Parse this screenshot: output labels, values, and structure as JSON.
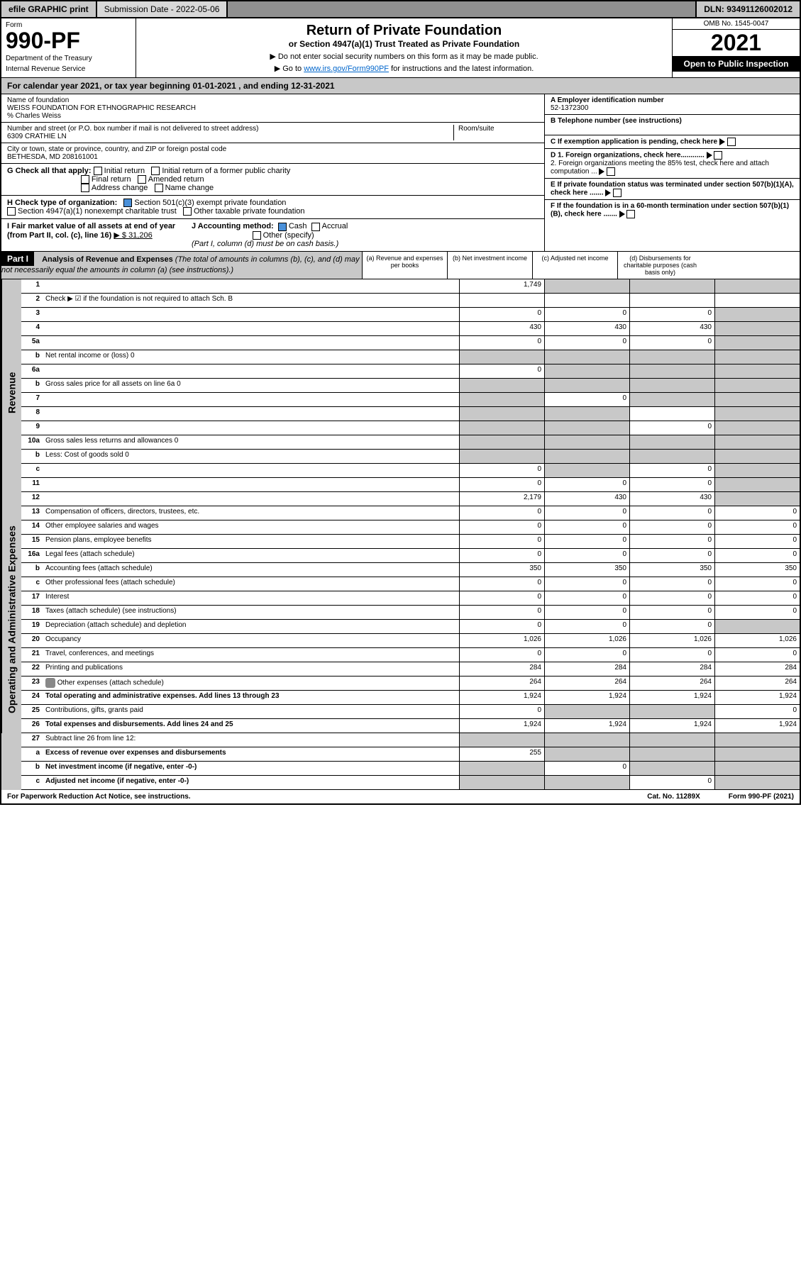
{
  "topbar": {
    "efile": "efile GRAPHIC print",
    "submission_label": "Submission Date - 2022-05-06",
    "dln": "DLN: 93491126002012"
  },
  "header": {
    "form_label": "Form",
    "form_number": "990-PF",
    "dept1": "Department of the Treasury",
    "dept2": "Internal Revenue Service",
    "title": "Return of Private Foundation",
    "subtitle": "or Section 4947(a)(1) Trust Treated as Private Foundation",
    "note1": "▶ Do not enter social security numbers on this form as it may be made public.",
    "note2_pre": "▶ Go to ",
    "note2_link": "www.irs.gov/Form990PF",
    "note2_post": " for instructions and the latest information.",
    "omb": "OMB No. 1545-0047",
    "year": "2021",
    "open_public": "Open to Public Inspection"
  },
  "calyear": "For calendar year 2021, or tax year beginning 01-01-2021                          , and ending 12-31-2021",
  "info": {
    "name_label": "Name of foundation",
    "name": "WEISS FOUNDATION FOR ETHNOGRAPHIC RESEARCH",
    "care_of": "% Charles Weiss",
    "addr_label": "Number and street (or P.O. box number if mail is not delivered to street address)",
    "addr": "6309 CRATHIE LN",
    "room_label": "Room/suite",
    "city_label": "City or town, state or province, country, and ZIP or foreign postal code",
    "city": "BETHESDA, MD  208161001",
    "ein_label": "A Employer identification number",
    "ein": "52-1372300",
    "phone_label": "B Telephone number (see instructions)",
    "c_label": "C If exemption application is pending, check here",
    "d1_label": "D 1. Foreign organizations, check here............",
    "d2_label": "2. Foreign organizations meeting the 85% test, check here and attach computation ...",
    "e_label": "E  If private foundation status was terminated under section 507(b)(1)(A), check here .......",
    "f_label": "F  If the foundation is in a 60-month termination under section 507(b)(1)(B), check here .......",
    "g_label": "G Check all that apply:",
    "g_opts": [
      "Initial return",
      "Initial return of a former public charity",
      "Final return",
      "Amended return",
      "Address change",
      "Name change"
    ],
    "h_label": "H Check type of organization:",
    "h_501c3": "Section 501(c)(3) exempt private foundation",
    "h_4947": "Section 4947(a)(1) nonexempt charitable trust",
    "h_other": "Other taxable private foundation",
    "i_label": "I Fair market value of all assets at end of year (from Part II, col. (c), line 16)",
    "i_value": "▶ $  31,206",
    "j_label": "J Accounting method:",
    "j_cash": "Cash",
    "j_accrual": "Accrual",
    "j_other": "Other (specify)",
    "j_note": "(Part I, column (d) must be on cash basis.)"
  },
  "part1": {
    "label": "Part I",
    "title": "Analysis of Revenue and Expenses",
    "title_note": " (The total of amounts in columns (b), (c), and (d) may not necessarily equal the amounts in column (a) (see instructions).)",
    "col_a": "(a)   Revenue and expenses per books",
    "col_b": "(b)   Net investment income",
    "col_c": "(c)  Adjusted net income",
    "col_d": "(d)   Disbursements for charitable purposes (cash basis only)"
  },
  "sections": {
    "revenue": "Revenue",
    "expenses": "Operating and Administrative Expenses"
  },
  "rows": [
    {
      "n": "1",
      "d": "",
      "a": "1,749",
      "b": "",
      "c": "",
      "grey": [
        "b",
        "c",
        "d"
      ]
    },
    {
      "n": "2",
      "d": "Check ▶ ☑ if the foundation is not required to attach Sch. B",
      "nocells": true
    },
    {
      "n": "3",
      "d": "",
      "a": "0",
      "b": "0",
      "c": "0",
      "grey": [
        "d"
      ]
    },
    {
      "n": "4",
      "d": "",
      "a": "430",
      "b": "430",
      "c": "430",
      "grey": [
        "d"
      ]
    },
    {
      "n": "5a",
      "d": "",
      "a": "0",
      "b": "0",
      "c": "0",
      "grey": [
        "d"
      ]
    },
    {
      "n": "b",
      "d": "Net rental income or (loss)                              0",
      "nocells": true,
      "grey_all": true
    },
    {
      "n": "6a",
      "d": "",
      "a": "0",
      "b": "",
      "c": "",
      "grey": [
        "b",
        "c",
        "d"
      ]
    },
    {
      "n": "b",
      "d": "Gross sales price for all assets on line 6a                0",
      "nocells": true,
      "grey_all": true
    },
    {
      "n": "7",
      "d": "",
      "a": "",
      "b": "0",
      "c": "",
      "grey": [
        "a",
        "c",
        "d"
      ]
    },
    {
      "n": "8",
      "d": "",
      "a": "",
      "b": "",
      "c": "",
      "grey": [
        "a",
        "b",
        "d"
      ]
    },
    {
      "n": "9",
      "d": "",
      "a": "",
      "b": "",
      "c": "0",
      "grey": [
        "a",
        "b",
        "d"
      ]
    },
    {
      "n": "10a",
      "d": "Gross sales less returns and allowances            0",
      "nocells": true,
      "grey_all": true
    },
    {
      "n": "b",
      "d": "Less: Cost of goods sold                                  0",
      "nocells": true,
      "grey_all": true
    },
    {
      "n": "c",
      "d": "",
      "a": "0",
      "b": "",
      "c": "0",
      "grey": [
        "b",
        "d"
      ]
    },
    {
      "n": "11",
      "d": "",
      "a": "0",
      "b": "0",
      "c": "0",
      "grey": [
        "d"
      ]
    },
    {
      "n": "12",
      "d": "",
      "a": "2,179",
      "b": "430",
      "c": "430",
      "grey": [
        "d"
      ],
      "bold": true
    }
  ],
  "exp_rows": [
    {
      "n": "13",
      "d": "Compensation of officers, directors, trustees, etc.",
      "a": "0",
      "b": "0",
      "c": "0",
      "dd": "0"
    },
    {
      "n": "14",
      "d": "Other employee salaries and wages",
      "a": "0",
      "b": "0",
      "c": "0",
      "dd": "0"
    },
    {
      "n": "15",
      "d": "Pension plans, employee benefits",
      "a": "0",
      "b": "0",
      "c": "0",
      "dd": "0"
    },
    {
      "n": "16a",
      "d": "Legal fees (attach schedule)",
      "a": "0",
      "b": "0",
      "c": "0",
      "dd": "0"
    },
    {
      "n": "b",
      "d": "Accounting fees (attach schedule)",
      "a": "350",
      "b": "350",
      "c": "350",
      "dd": "350"
    },
    {
      "n": "c",
      "d": "Other professional fees (attach schedule)",
      "a": "0",
      "b": "0",
      "c": "0",
      "dd": "0"
    },
    {
      "n": "17",
      "d": "Interest",
      "a": "0",
      "b": "0",
      "c": "0",
      "dd": "0"
    },
    {
      "n": "18",
      "d": "Taxes (attach schedule) (see instructions)",
      "a": "0",
      "b": "0",
      "c": "0",
      "dd": "0"
    },
    {
      "n": "19",
      "d": "Depreciation (attach schedule) and depletion",
      "a": "0",
      "b": "0",
      "c": "0",
      "dd": "",
      "grey": [
        "d"
      ]
    },
    {
      "n": "20",
      "d": "Occupancy",
      "a": "1,026",
      "b": "1,026",
      "c": "1,026",
      "dd": "1,026"
    },
    {
      "n": "21",
      "d": "Travel, conferences, and meetings",
      "a": "0",
      "b": "0",
      "c": "0",
      "dd": "0"
    },
    {
      "n": "22",
      "d": "Printing and publications",
      "a": "284",
      "b": "284",
      "c": "284",
      "dd": "284"
    },
    {
      "n": "23",
      "d": "Other expenses (attach schedule)",
      "a": "264",
      "b": "264",
      "c": "264",
      "dd": "264",
      "icon": true
    },
    {
      "n": "24",
      "d": "Total operating and administrative expenses. Add lines 13 through 23",
      "a": "1,924",
      "b": "1,924",
      "c": "1,924",
      "dd": "1,924",
      "bold": true
    },
    {
      "n": "25",
      "d": "Contributions, gifts, grants paid",
      "a": "0",
      "b": "",
      "c": "",
      "dd": "0",
      "grey": [
        "b",
        "c"
      ]
    },
    {
      "n": "26",
      "d": "Total expenses and disbursements. Add lines 24 and 25",
      "a": "1,924",
      "b": "1,924",
      "c": "1,924",
      "dd": "1,924",
      "bold": true
    }
  ],
  "bottom_rows": [
    {
      "n": "27",
      "d": "Subtract line 26 from line 12:",
      "nocells": true,
      "grey_all": true
    },
    {
      "n": "a",
      "d": "Excess of revenue over expenses and disbursements",
      "a": "255",
      "b": "",
      "c": "",
      "dd": "",
      "grey": [
        "b",
        "c",
        "d"
      ],
      "bold": true
    },
    {
      "n": "b",
      "d": "Net investment income (if negative, enter -0-)",
      "a": "",
      "b": "0",
      "c": "",
      "dd": "",
      "grey": [
        "a",
        "c",
        "d"
      ],
      "bold": true
    },
    {
      "n": "c",
      "d": "Adjusted net income (if negative, enter -0-)",
      "a": "",
      "b": "",
      "c": "0",
      "dd": "",
      "grey": [
        "a",
        "b",
        "d"
      ],
      "bold": true
    }
  ],
  "footer": {
    "left": "For Paperwork Reduction Act Notice, see instructions.",
    "mid": "Cat. No. 11289X",
    "right": "Form 990-PF (2021)"
  }
}
